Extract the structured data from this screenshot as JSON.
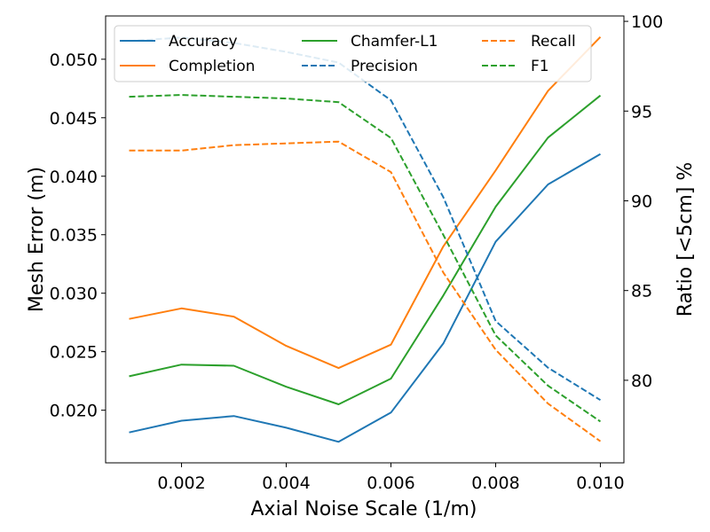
{
  "chart_data": {
    "type": "line",
    "title": "",
    "xlabel": "Axial Noise Scale (1/m)",
    "ylabel": "Mesh Error (m)",
    "y2label": "Ratio [<5cm] %",
    "x": [
      0.001,
      0.002,
      0.003,
      0.004,
      0.005,
      0.006,
      0.007,
      0.008,
      0.009,
      0.01
    ],
    "xlim": [
      0.00055,
      0.01045
    ],
    "ylim": [
      0.0155,
      0.0537
    ],
    "y2lim": [
      75.4,
      100.3
    ],
    "xticks": [
      0.002,
      0.004,
      0.006,
      0.008,
      0.01
    ],
    "xtick_labels": [
      "0.002",
      "0.004",
      "0.006",
      "0.008",
      "0.010"
    ],
    "yticks": [
      0.02,
      0.025,
      0.03,
      0.035,
      0.04,
      0.045,
      0.05
    ],
    "ytick_labels": [
      "0.020",
      "0.025",
      "0.030",
      "0.035",
      "0.040",
      "0.045",
      "0.050"
    ],
    "y2ticks": [
      80,
      85,
      90,
      95,
      100
    ],
    "y2tick_labels": [
      "80",
      "85",
      "90",
      "95",
      "100"
    ],
    "grid": false,
    "legend_position": "top",
    "series": [
      {
        "name": "Accuracy",
        "axis": "left",
        "style": "solid",
        "color": "#1f77b4",
        "values": [
          0.0181,
          0.0191,
          0.0195,
          0.0185,
          0.0173,
          0.0198,
          0.0257,
          0.0344,
          0.0393,
          0.0419
        ]
      },
      {
        "name": "Completion",
        "axis": "left",
        "style": "solid",
        "color": "#ff7f0e",
        "values": [
          0.0278,
          0.0287,
          0.028,
          0.0255,
          0.0236,
          0.0256,
          0.034,
          0.0405,
          0.0473,
          0.0519
        ]
      },
      {
        "name": "Chamfer-L1",
        "axis": "left",
        "style": "solid",
        "color": "#2ca02c",
        "values": [
          0.0229,
          0.0239,
          0.0238,
          0.022,
          0.0205,
          0.0227,
          0.0298,
          0.0374,
          0.0433,
          0.0469
        ]
      },
      {
        "name": "Precision",
        "axis": "right",
        "style": "dashed",
        "color": "#1f77b4",
        "values": [
          98.9,
          99.1,
          98.8,
          98.3,
          97.7,
          95.6,
          90.2,
          83.3,
          80.7,
          78.9
        ]
      },
      {
        "name": "Recall",
        "axis": "right",
        "style": "dashed",
        "color": "#ff7f0e",
        "values": [
          92.8,
          92.8,
          93.1,
          93.2,
          93.3,
          91.6,
          86.0,
          81.7,
          78.7,
          76.6
        ]
      },
      {
        "name": "F1",
        "axis": "right",
        "style": "dashed",
        "color": "#2ca02c",
        "values": [
          95.8,
          95.9,
          95.8,
          95.7,
          95.5,
          93.5,
          88.1,
          82.5,
          79.7,
          77.7
        ]
      }
    ],
    "legend_order": [
      "Accuracy",
      "Completion",
      "Chamfer-L1",
      "Precision",
      "Recall",
      "F1"
    ]
  }
}
